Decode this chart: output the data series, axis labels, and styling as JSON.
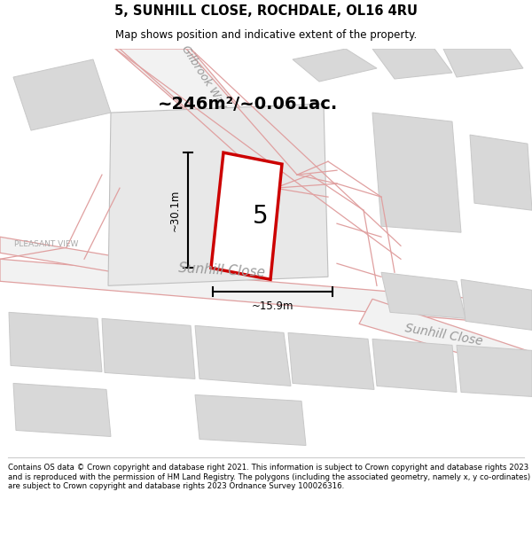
{
  "title": "5, SUNHILL CLOSE, ROCHDALE, OL16 4RU",
  "subtitle": "Map shows position and indicative extent of the property.",
  "area_text": "~246m²/~0.061ac.",
  "dim_height": "~30.1m",
  "dim_width": "~15.9m",
  "property_number": "5",
  "footer": "Contains OS data © Crown copyright and database right 2021. This information is subject to Crown copyright and database rights 2023 and is reproduced with the permission of HM Land Registry. The polygons (including the associated geometry, namely x, y co-ordinates) are subject to Crown copyright and database rights 2023 Ordnance Survey 100026316.",
  "bg_color": "#ffffff",
  "road_color": "#e0a0a0",
  "road_fill": "#f2f2f2",
  "block_fill": "#d8d8d8",
  "block_edge": "#c8c8c8",
  "plot_fill": "#ffffff",
  "plot_edge": "#cc0000",
  "label_color": "#999999",
  "text_color": "#000000",
  "map_bg": "#ffffff"
}
